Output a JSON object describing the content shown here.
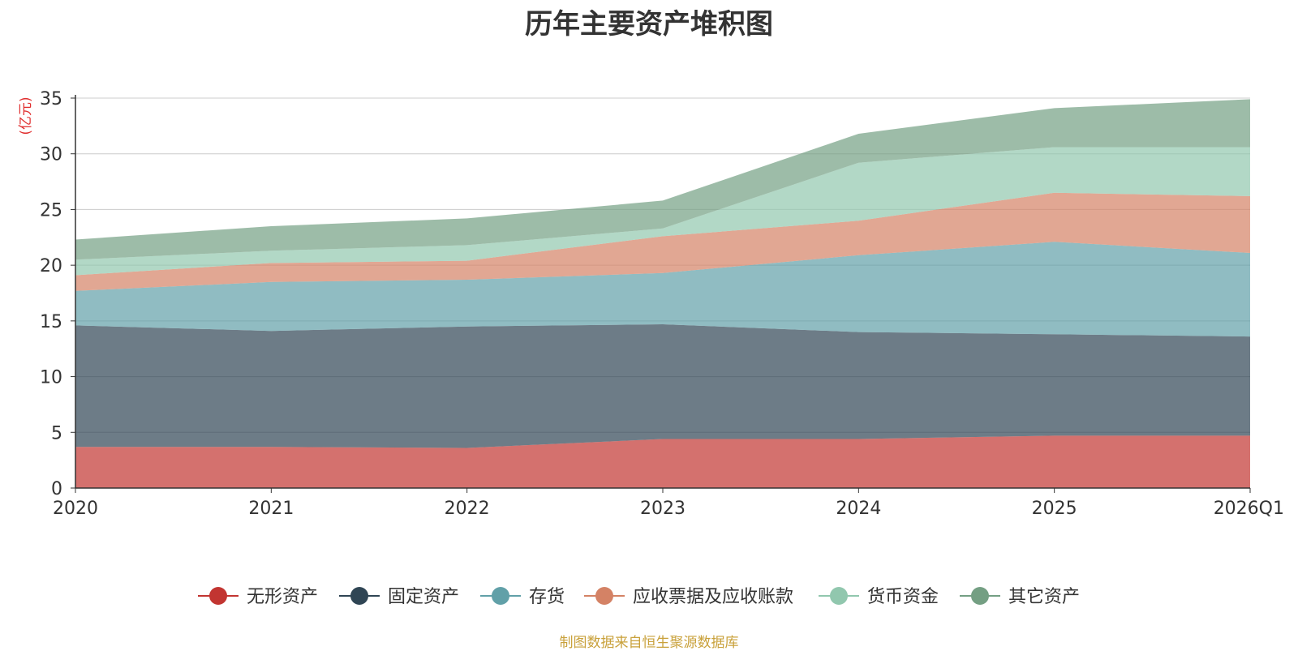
{
  "chart_data": {
    "type": "area",
    "stacked": true,
    "title": "历年主要资产堆积图",
    "ylabel": "(亿元)",
    "x": [
      "2020",
      "2021",
      "2022",
      "2023",
      "2024",
      "2025",
      "2026Q1"
    ],
    "ylim": [
      0,
      35
    ],
    "yticks": [
      0,
      5,
      10,
      15,
      20,
      25,
      30,
      35
    ],
    "grid": true,
    "legend_position": "bottom",
    "series": [
      {
        "name": "无形资产",
        "color": "#c23531",
        "values": [
          3.7,
          3.7,
          3.6,
          4.4,
          4.4,
          4.7,
          4.7
        ]
      },
      {
        "name": "固定资产",
        "color": "#2f4554",
        "values": [
          10.9,
          10.4,
          10.9,
          10.3,
          9.6,
          9.1,
          8.9
        ]
      },
      {
        "name": "存货",
        "color": "#61a0a8",
        "values": [
          3.1,
          4.4,
          4.2,
          4.6,
          6.9,
          8.3,
          7.5
        ]
      },
      {
        "name": "应收票据及应收账款",
        "color": "#d48265",
        "values": [
          1.4,
          1.7,
          1.7,
          3.3,
          3.1,
          4.4,
          5.1
        ]
      },
      {
        "name": "货币资金",
        "color": "#91c7ae",
        "values": [
          1.4,
          1.1,
          1.4,
          0.7,
          5.2,
          4.1,
          4.4
        ]
      },
      {
        "name": "其它资产",
        "color": "#749f83",
        "values": [
          1.8,
          2.2,
          2.4,
          2.5,
          2.6,
          3.5,
          4.3
        ]
      }
    ]
  },
  "source_note": "制图数据来自恒生聚源数据库"
}
